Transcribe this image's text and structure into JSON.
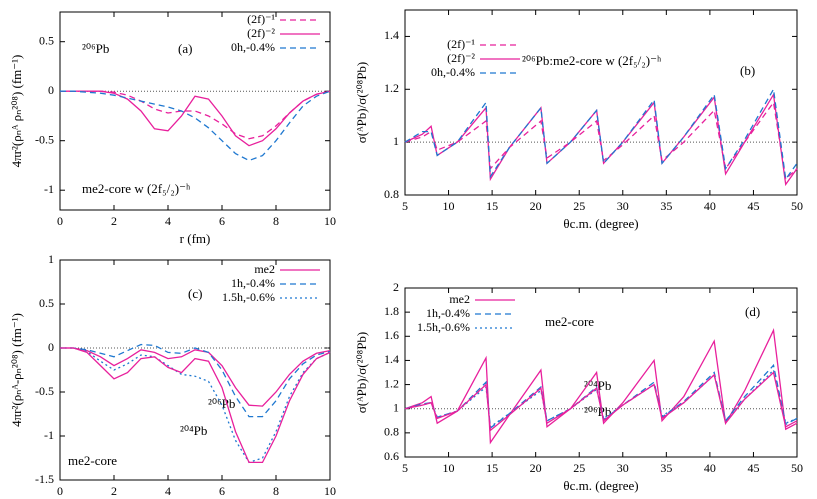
{
  "chart_data": [
    {
      "type": "line",
      "xlabel": "r (fm)",
      "ylabel": "4πr²(ρₙᴬ ρₙ²⁰⁸) (fm⁻¹)",
      "xlim": [
        0,
        10
      ],
      "ylim": [
        -1.2,
        0.8
      ],
      "xticks": [
        0,
        2,
        4,
        6,
        8,
        10
      ],
      "yticks": [
        -1,
        -0.5,
        0,
        0.5
      ],
      "hline": 0,
      "legend": "upper right",
      "annotations": [
        "²⁰⁶Pb",
        "(a)",
        "me2-core w (2f₅/₂)⁻ʰ"
      ],
      "x": [
        0,
        0.5,
        1,
        1.5,
        2,
        2.5,
        3,
        3.5,
        4,
        4.5,
        5,
        5.5,
        6,
        6.5,
        7,
        7.5,
        8,
        8.5,
        9,
        9.5,
        10
      ],
      "series": [
        {
          "name": "(2f)⁻¹",
          "color": "#e8209c",
          "style": "dashed",
          "values": [
            0,
            0,
            0,
            0,
            -0.01,
            -0.04,
            -0.1,
            -0.18,
            -0.22,
            -0.2,
            -0.2,
            -0.25,
            -0.33,
            -0.43,
            -0.48,
            -0.45,
            -0.35,
            -0.22,
            -0.1,
            -0.03,
            0
          ]
        },
        {
          "name": "(2f)⁻²",
          "color": "#e8209c",
          "style": "solid",
          "values": [
            0,
            0,
            0,
            0,
            -0.02,
            -0.08,
            -0.2,
            -0.38,
            -0.4,
            -0.25,
            -0.05,
            -0.08,
            -0.25,
            -0.45,
            -0.55,
            -0.5,
            -0.38,
            -0.22,
            -0.1,
            -0.03,
            0
          ]
        },
        {
          "name": "0h,-0.4%",
          "color": "#1f78d0",
          "style": "dashed",
          "values": [
            0,
            0,
            -0.01,
            -0.02,
            -0.04,
            -0.07,
            -0.1,
            -0.13,
            -0.16,
            -0.2,
            -0.27,
            -0.37,
            -0.5,
            -0.63,
            -0.7,
            -0.65,
            -0.5,
            -0.32,
            -0.15,
            -0.05,
            0
          ]
        }
      ]
    },
    {
      "type": "line",
      "xlabel": "θc.m. (degree)",
      "ylabel": "σ(ᴬPb)/σ(²⁰⁸Pb)",
      "xlim": [
        5,
        50
      ],
      "ylim": [
        0.8,
        1.5
      ],
      "xticks": [
        5,
        10,
        15,
        20,
        25,
        30,
        35,
        40,
        45,
        50
      ],
      "yticks": [
        0.8,
        1,
        1.2,
        1.4
      ],
      "hline": 1,
      "legend": "upper left",
      "annotations": [
        "²⁰⁶Pb:me2-core w (2f₅/₂)⁻ʰ",
        "(b)"
      ],
      "x": [
        5,
        7,
        8,
        8.7,
        11,
        14.3,
        14.8,
        17,
        20.6,
        21.3,
        24,
        27,
        27.8,
        30,
        33.6,
        34.5,
        37,
        40.5,
        41.8,
        44,
        47.3,
        48.7,
        50
      ],
      "series": [
        {
          "name": "(2f)⁻¹",
          "color": "#e8209c",
          "style": "dashed",
          "values": [
            1.0,
            1.02,
            1.04,
            0.97,
            1.0,
            1.08,
            0.9,
            0.98,
            1.08,
            0.94,
            1.0,
            1.08,
            0.93,
            0.99,
            1.1,
            0.93,
            1.0,
            1.12,
            0.9,
            1.0,
            1.15,
            0.86,
            0.9
          ]
        },
        {
          "name": "(2f)⁻²",
          "color": "#e8209c",
          "style": "solid",
          "values": [
            1.0,
            1.03,
            1.06,
            0.95,
            1.0,
            1.13,
            0.86,
            0.98,
            1.13,
            0.92,
            1.0,
            1.12,
            0.92,
            1.0,
            1.15,
            0.92,
            1.02,
            1.17,
            0.88,
            1.0,
            1.18,
            0.84,
            0.9
          ]
        },
        {
          "name": "0h,-0.4%",
          "color": "#1f78d0",
          "style": "dashed",
          "values": [
            1.0,
            1.04,
            1.04,
            0.95,
            1.0,
            1.15,
            0.87,
            0.98,
            1.13,
            0.92,
            1.0,
            1.12,
            0.92,
            1.0,
            1.16,
            0.92,
            1.02,
            1.18,
            0.9,
            1.01,
            1.2,
            0.86,
            0.92
          ]
        }
      ]
    },
    {
      "type": "line",
      "xlabel": "r (fm)",
      "ylabel": "4πr²(ρₙᴬ-ρₙ²⁰⁸) (fm⁻¹)",
      "xlim": [
        0,
        10
      ],
      "ylim": [
        -1.5,
        1
      ],
      "xticks": [
        0,
        2,
        4,
        6,
        8,
        10
      ],
      "yticks": [
        -1.5,
        -1,
        -0.5,
        0,
        0.5,
        1
      ],
      "hline": 0,
      "legend": "upper right",
      "annotations": [
        "(c)",
        "²⁰⁶Pb",
        "²⁰⁴Pb",
        "me2-core"
      ],
      "x": [
        0,
        0.5,
        1,
        1.5,
        2,
        2.5,
        3,
        3.5,
        4,
        4.5,
        5,
        5.5,
        6,
        6.5,
        7,
        7.5,
        8,
        8.5,
        9,
        9.5,
        10
      ],
      "series": [
        {
          "name": "me2",
          "color": "#e8209c",
          "style": "solid",
          "values": [
            0,
            0,
            -0.03,
            -0.1,
            -0.2,
            -0.12,
            -0.02,
            -0.05,
            -0.12,
            -0.1,
            -0.02,
            -0.05,
            -0.2,
            -0.45,
            -0.65,
            -0.66,
            -0.5,
            -0.3,
            -0.15,
            -0.06,
            -0.03
          ]
        },
        {
          "name": "1h,-0.4%",
          "color": "#1f78d0",
          "style": "dashed",
          "values": [
            0,
            0,
            -0.02,
            -0.06,
            -0.1,
            -0.03,
            0.04,
            0.03,
            -0.05,
            -0.06,
            0,
            -0.05,
            -0.25,
            -0.55,
            -0.78,
            -0.78,
            -0.6,
            -0.35,
            -0.18,
            -0.08,
            -0.04
          ]
        },
        {
          "name": "1.5h,-0.6%",
          "color": "#1f78d0",
          "style": "dotted",
          "values": [
            0,
            0,
            -0.04,
            -0.15,
            -0.25,
            -0.18,
            -0.08,
            -0.1,
            -0.2,
            -0.3,
            -0.32,
            -0.38,
            -0.65,
            -1.05,
            -1.3,
            -1.25,
            -0.95,
            -0.55,
            -0.28,
            -0.12,
            -0.05
          ]
        },
        {
          "color": "#e8209c",
          "style": "solid",
          "values": [
            0,
            0,
            -0.05,
            -0.2,
            -0.35,
            -0.28,
            -0.12,
            -0.1,
            -0.22,
            -0.28,
            -0.12,
            -0.15,
            -0.45,
            -0.95,
            -1.3,
            -1.3,
            -1.0,
            -0.6,
            -0.3,
            -0.12,
            -0.05
          ]
        }
      ]
    },
    {
      "type": "line",
      "xlabel": "θc.m. (degree)",
      "ylabel": "σ(ᴬPb)/σ(²⁰⁸Pb)",
      "xlim": [
        5,
        50
      ],
      "ylim": [
        0.6,
        2
      ],
      "xticks": [
        5,
        10,
        15,
        20,
        25,
        30,
        35,
        40,
        45,
        50
      ],
      "yticks": [
        0.6,
        0.8,
        1,
        1.2,
        1.4,
        1.6,
        1.8,
        2
      ],
      "hline": 1,
      "legend": "upper left",
      "annotations": [
        "me2-core",
        "(d)",
        "²⁰⁴Pb",
        "²⁰⁶Pb"
      ],
      "x": [
        5,
        7,
        8,
        8.7,
        11,
        14.3,
        14.8,
        17,
        20.6,
        21.3,
        24,
        27,
        27.8,
        30,
        33.6,
        34.5,
        37,
        40.5,
        41.8,
        44,
        47.3,
        48.7,
        50
      ],
      "series": [
        {
          "name": "me2",
          "color": "#e8209c",
          "style": "solid",
          "values": [
            1.0,
            1.05,
            1.1,
            0.88,
            0.98,
            1.42,
            0.72,
            0.95,
            1.32,
            0.85,
            1.0,
            1.3,
            0.88,
            1.05,
            1.4,
            0.9,
            1.1,
            1.56,
            0.88,
            1.15,
            1.65,
            0.83,
            0.88
          ]
        },
        {
          "name": "1h,-0.4%",
          "color": "#1f78d0",
          "style": "dashed",
          "values": [
            1.0,
            1.04,
            1.05,
            0.93,
            0.98,
            1.22,
            0.84,
            0.96,
            1.18,
            0.9,
            1.0,
            1.18,
            0.91,
            1.03,
            1.22,
            0.93,
            1.06,
            1.3,
            0.9,
            1.1,
            1.36,
            0.87,
            0.92
          ]
        },
        {
          "name": "1.5h,-0.6%",
          "color": "#1f78d0",
          "style": "dotted",
          "values": [
            1.0,
            1.03,
            1.05,
            0.93,
            0.98,
            1.18,
            0.85,
            0.96,
            1.15,
            0.9,
            1.0,
            1.16,
            0.92,
            1.03,
            1.2,
            0.94,
            1.05,
            1.28,
            0.9,
            1.08,
            1.32,
            0.88,
            0.92
          ]
        },
        {
          "color": "#e8209c",
          "style": "solid",
          "values": [
            1.0,
            1.03,
            1.05,
            0.92,
            0.98,
            1.2,
            0.82,
            0.95,
            1.17,
            0.88,
            1.0,
            1.17,
            0.9,
            1.03,
            1.2,
            0.92,
            1.05,
            1.28,
            0.88,
            1.08,
            1.3,
            0.85,
            0.9
          ]
        }
      ]
    }
  ]
}
